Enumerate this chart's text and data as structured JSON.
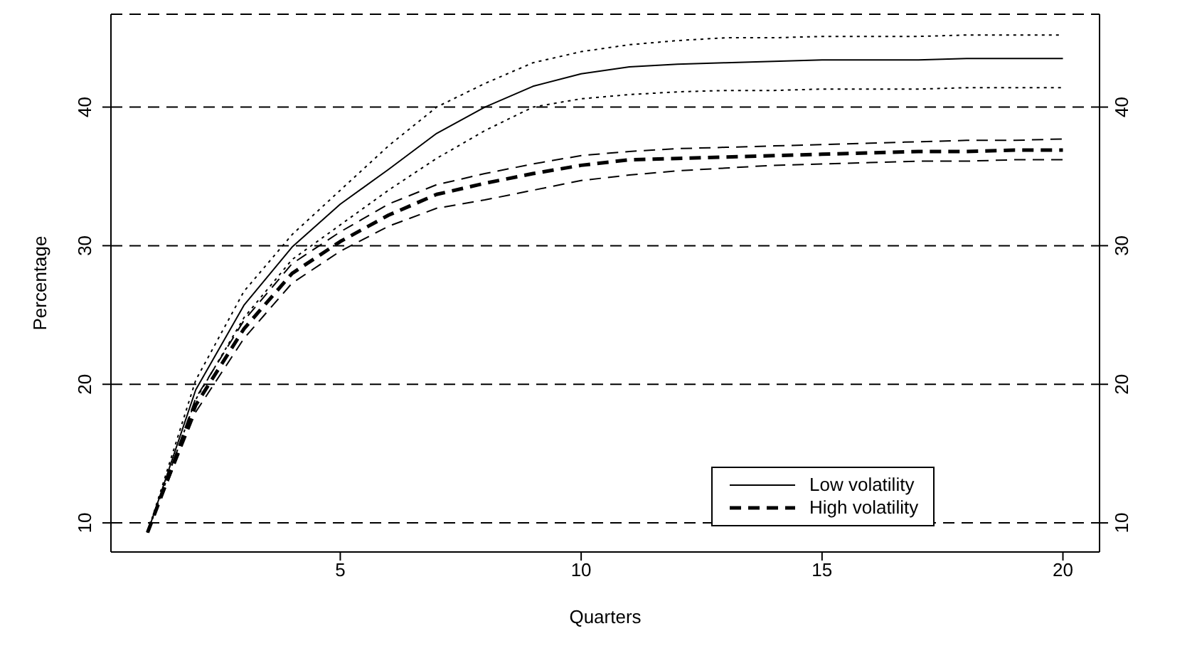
{
  "chart_data": {
    "type": "line",
    "xlabel": "Quarters",
    "ylabel": "Percentage",
    "x": [
      1,
      2,
      3,
      4,
      5,
      6,
      7,
      8,
      9,
      10,
      11,
      12,
      13,
      14,
      15,
      16,
      17,
      18,
      19,
      20
    ],
    "series": [
      {
        "name": "Low volatility",
        "color": "#000000",
        "line_style": "solid",
        "values": [
          9.3,
          19.6,
          25.7,
          29.9,
          33.0,
          35.5,
          38.1,
          40.0,
          41.5,
          42.4,
          42.9,
          43.1,
          43.2,
          43.3,
          43.4,
          43.4,
          43.4,
          43.5,
          43.5,
          43.5
        ]
      },
      {
        "color": "#000000",
        "line_style": "dotted",
        "values": [
          9.3,
          20.3,
          26.7,
          30.8,
          34.0,
          37.2,
          40.0,
          41.7,
          43.2,
          44.0,
          44.5,
          44.8,
          45.0,
          45.0,
          45.1,
          45.1,
          45.1,
          45.2,
          45.2,
          45.2
        ]
      },
      {
        "color": "#000000",
        "line_style": "dotted",
        "values": [
          9.3,
          18.9,
          24.8,
          29.0,
          31.5,
          34.0,
          36.3,
          38.3,
          40.0,
          40.6,
          40.9,
          41.1,
          41.2,
          41.2,
          41.3,
          41.3,
          41.3,
          41.4,
          41.4,
          41.4
        ]
      },
      {
        "name": "High volatility",
        "color": "#000000",
        "line_style": "dashed",
        "values": [
          9.3,
          18.5,
          24.0,
          28.0,
          30.3,
          32.2,
          33.7,
          34.5,
          35.2,
          35.8,
          36.2,
          36.3,
          36.4,
          36.5,
          36.6,
          36.7,
          36.8,
          36.8,
          36.9,
          36.9
        ]
      },
      {
        "color": "#000000",
        "line_style": "dashed",
        "values": [
          9.3,
          19.0,
          24.6,
          28.7,
          31.0,
          33.0,
          34.4,
          35.2,
          35.9,
          36.5,
          36.8,
          37.0,
          37.1,
          37.2,
          37.3,
          37.4,
          37.5,
          37.6,
          37.6,
          37.7
        ]
      },
      {
        "color": "#000000",
        "line_style": "dashed",
        "values": [
          9.3,
          18.0,
          23.3,
          27.3,
          29.6,
          31.4,
          32.7,
          33.3,
          34.0,
          34.7,
          35.1,
          35.4,
          35.6,
          35.8,
          35.9,
          36.0,
          36.1,
          36.1,
          36.2,
          36.2
        ]
      }
    ],
    "xlim": [
      0.24,
      20.76
    ],
    "xticks": [
      5,
      10,
      15,
      20
    ],
    "ylim": [
      7.9,
      46.7
    ],
    "yticks": [
      10,
      20,
      30,
      40
    ],
    "y2lim": [
      7.9,
      46.7
    ],
    "y2ticks": [
      10,
      20,
      30,
      40
    ],
    "grid": "y",
    "legend": "bottom right",
    "marker": "none"
  }
}
